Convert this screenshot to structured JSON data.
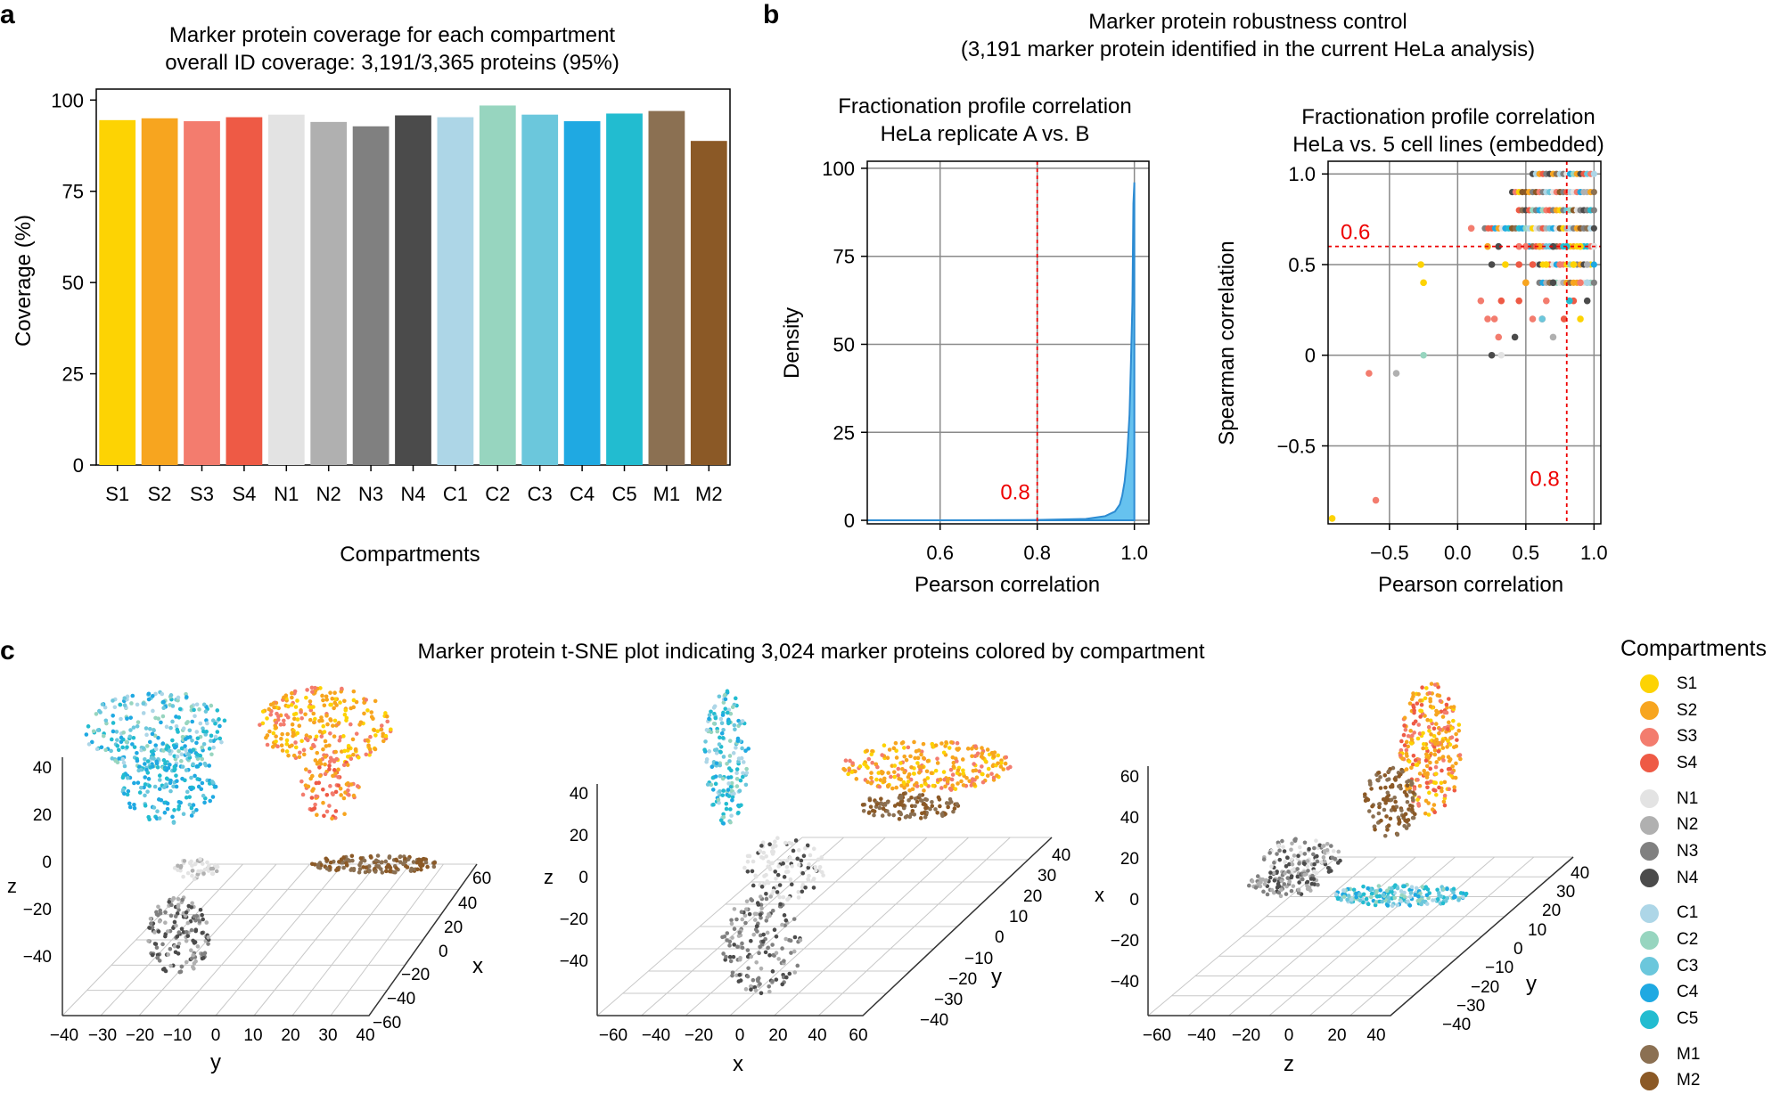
{
  "panels": {
    "a": "a",
    "b": "b",
    "c": "c"
  },
  "compartment_colors": {
    "S1": "#fdd303",
    "S2": "#f7a51f",
    "S3": "#f37c6e",
    "S4": "#ee5a45",
    "N1": "#e3e3e3",
    "N2": "#b0b0b0",
    "N3": "#808080",
    "N4": "#4b4b4b",
    "C1": "#add6e7",
    "C2": "#97d5bf",
    "C3": "#6bc7dc",
    "C4": "#1fa9e2",
    "C5": "#22bcd0",
    "M1": "#8b7052",
    "M2": "#8b5926"
  },
  "header_b": {
    "line1": "Marker protein robustness control",
    "line2": "(3,191 marker protein identified in the current HeLa analysis)"
  },
  "chart_data": [
    {
      "id": "coverage",
      "type": "bar",
      "title": "Marker protein coverage for each compartment",
      "subtitle": "overall ID coverage: 3,191/3,365 proteins (95%)",
      "xlabel": "Compartments",
      "ylabel": "Coverage (%)",
      "ylim": [
        0,
        103
      ],
      "yticks": [
        "0",
        "25",
        "50",
        "75",
        "100"
      ],
      "categories": [
        "S1",
        "S2",
        "S3",
        "S4",
        "N1",
        "N2",
        "N3",
        "N4",
        "C1",
        "C2",
        "C3",
        "C4",
        "C5",
        "M1",
        "M2"
      ],
      "values": [
        94.5,
        95,
        94.2,
        95.3,
        96,
        94,
        92.8,
        95.8,
        95.3,
        98.5,
        96,
        94.2,
        96.3,
        97,
        88.8
      ]
    },
    {
      "id": "density",
      "type": "area",
      "title": "Fractionation profile correlation",
      "subtitle": "HeLa replicate A vs. B",
      "xlabel": "Pearson correlation",
      "ylabel": "Density",
      "xlim": [
        0.45,
        1.03
      ],
      "ylim": [
        -1,
        102
      ],
      "xticks": [
        "0.6",
        "0.8",
        "1.0"
      ],
      "yticks": [
        "0",
        "25",
        "50",
        "75",
        "100"
      ],
      "threshold": {
        "value": 0.8,
        "label": "0.8"
      },
      "x": [
        0.45,
        0.6,
        0.8,
        0.9,
        0.94,
        0.96,
        0.97,
        0.975,
        0.98,
        0.985,
        0.99,
        0.993,
        0.996,
        0.998,
        1.0
      ],
      "y": [
        0,
        0,
        0.1,
        0.4,
        1.2,
        2.5,
        4.5,
        7,
        11,
        18,
        30,
        45,
        62,
        90,
        96
      ]
    },
    {
      "id": "scatter_corr",
      "type": "scatter",
      "title": "Fractionation profile correlation",
      "subtitle": "HeLa vs. 5 cell lines (embedded)",
      "xlabel": "Pearson correlation",
      "ylabel": "Spearman correlation",
      "xlim": [
        -0.95,
        1.05
      ],
      "ylim": [
        -0.93,
        1.07
      ],
      "xticks": [
        "−0.5",
        "0.0",
        "0.5",
        "1.0"
      ],
      "yticks": [
        "−0.5",
        "0",
        "0.5",
        "1.0"
      ],
      "thresholds": {
        "x": 0.8,
        "x_label": "0.8",
        "y": 0.6,
        "y_label": "0.6"
      },
      "points": [
        [
          -0.92,
          -0.9,
          "S1"
        ],
        [
          -0.6,
          -0.8,
          "S3"
        ],
        [
          -0.65,
          -0.1,
          "S3"
        ],
        [
          -0.45,
          -0.1,
          "N2"
        ],
        [
          -0.27,
          0.5,
          "S1"
        ],
        [
          -0.25,
          0.4,
          "S1"
        ],
        [
          -0.25,
          0.0,
          "C2"
        ],
        [
          0.1,
          0.7,
          "S3"
        ],
        [
          0.17,
          0.3,
          "S3"
        ],
        [
          0.22,
          0.2,
          "S3"
        ],
        [
          0.27,
          0.2,
          "S3"
        ],
        [
          0.32,
          0.3,
          "S4"
        ],
        [
          0.25,
          0.0,
          "N4"
        ],
        [
          0.32,
          0.0,
          "N1"
        ],
        [
          0.3,
          0.1,
          "S3"
        ],
        [
          0.42,
          0.1,
          "N4"
        ],
        [
          0.7,
          0.1,
          "N2"
        ],
        [
          0.25,
          0.5,
          "N4"
        ],
        [
          0.35,
          0.5,
          "S1"
        ],
        [
          0.45,
          0.5,
          "S4"
        ],
        [
          0.5,
          0.4,
          "S3"
        ],
        [
          0.22,
          0.6,
          "S2"
        ],
        [
          0.3,
          0.6,
          "N4"
        ],
        [
          0.45,
          0.6,
          "S3"
        ],
        [
          0.45,
          0.3,
          "S4"
        ],
        [
          0.55,
          0.2,
          "S3"
        ],
        [
          0.62,
          0.2,
          "S4"
        ],
        [
          0.65,
          0.3,
          "S3"
        ],
        [
          0.78,
          0.2,
          "S4"
        ],
        [
          0.85,
          0.3,
          "S4"
        ],
        [
          0.9,
          0.2,
          "S1"
        ],
        [
          0.95,
          0.3,
          "N4"
        ],
        [
          0.55,
          0.5,
          "S4"
        ],
        [
          0.65,
          0.5,
          "S1"
        ],
        [
          0.75,
          0.5,
          "S3"
        ],
        [
          0.85,
          0.5,
          "S1"
        ],
        [
          0.95,
          0.5,
          "N2"
        ],
        [
          0.5,
          0.4,
          "S2"
        ],
        [
          0.7,
          0.4,
          "N4"
        ],
        [
          0.9,
          0.4,
          "S3"
        ],
        [
          0.5,
          0.6,
          "S3"
        ],
        [
          0.6,
          0.6,
          "S2"
        ],
        [
          0.7,
          0.6,
          "N4"
        ],
        [
          0.8,
          0.6,
          "C5"
        ],
        [
          0.9,
          0.6,
          "S1"
        ],
        [
          1.0,
          0.6,
          "N1"
        ],
        [
          0.62,
          0.2,
          "C3"
        ],
        [
          0.82,
          0.3,
          "C5"
        ],
        [
          0.95,
          0.4,
          "C1"
        ]
      ],
      "rows": [
        {
          "y": 1.0,
          "x_from": 0.55,
          "x_to": 1.0
        },
        {
          "y": 0.9,
          "x_from": 0.4,
          "x_to": 1.0
        },
        {
          "y": 0.8,
          "x_from": 0.45,
          "x_to": 1.0
        },
        {
          "y": 0.7,
          "x_from": 0.2,
          "x_to": 1.0
        },
        {
          "y": 0.6,
          "x_from": 0.5,
          "x_to": 1.0
        },
        {
          "y": 0.5,
          "x_from": 0.55,
          "x_to": 1.0
        },
        {
          "y": 0.4,
          "x_from": 0.6,
          "x_to": 1.0
        }
      ]
    }
  ],
  "tsne": {
    "title": "Marker protein t-SNE plot indicating 3,024 marker proteins colored by compartment",
    "plot1": {
      "z_label": "z",
      "x_label": "x",
      "y_label": "y",
      "z_ticks": [
        "40",
        "20",
        "0",
        "−20",
        "−40"
      ],
      "x_ticks": [
        "60",
        "40",
        "20",
        "0",
        "−20",
        "−40",
        "−60"
      ],
      "y_ticks": [
        "−40",
        "−30",
        "−20",
        "−10",
        "0",
        "10",
        "20",
        "30",
        "40"
      ]
    },
    "plot2": {
      "z_label": "z",
      "x_label": "x",
      "y_label": "y",
      "z_ticks": [
        "40",
        "20",
        "0",
        "−20",
        "−40"
      ],
      "y_ticks": [
        "40",
        "30",
        "20",
        "10",
        "0",
        "−10",
        "−20",
        "−30",
        "−40"
      ],
      "x_ticks": [
        "−60",
        "−40",
        "−20",
        "0",
        "20",
        "40",
        "60"
      ]
    },
    "plot3": {
      "x_label": "x",
      "y_label": "y",
      "z_label": "z",
      "x_ticks": [
        "60",
        "40",
        "20",
        "0",
        "−20",
        "−40"
      ],
      "y_ticks": [
        "40",
        "30",
        "20",
        "10",
        "0",
        "−10",
        "−20",
        "−30",
        "−40"
      ],
      "z_ticks": [
        "−60",
        "−40",
        "−20",
        "0",
        "20",
        "40"
      ]
    }
  },
  "legend": {
    "title": "Compartments",
    "groups": [
      [
        "S1",
        "S2",
        "S3",
        "S4"
      ],
      [
        "N1",
        "N2",
        "N3",
        "N4"
      ],
      [
        "C1",
        "C2",
        "C3",
        "C4",
        "C5"
      ],
      [
        "M1",
        "M2"
      ]
    ]
  }
}
